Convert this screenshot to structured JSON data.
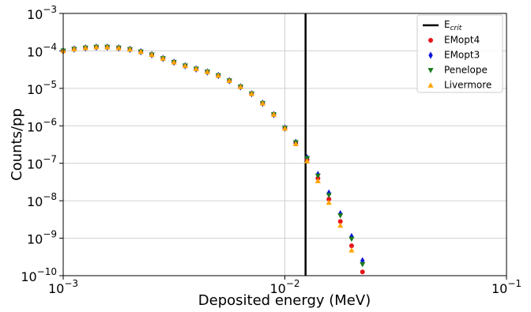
{
  "chart_data": {
    "type": "scatter",
    "x_label": "Deposited energy (MeV)",
    "y_label": "Counts/pp",
    "log_x": true,
    "log_y": true,
    "grid": true,
    "legend": "upper right",
    "xlim": [
      0.001,
      0.1
    ],
    "ylim": [
      1e-10,
      0.001
    ],
    "xticks": [
      {
        "value": 0.001,
        "label": "10−3"
      },
      {
        "value": 0.01,
        "label": "10−2"
      },
      {
        "value": 0.1,
        "label": "10−1"
      }
    ],
    "yticks": [
      {
        "value": 1e-10,
        "label": "10−10"
      },
      {
        "value": 1e-09,
        "label": "10−9"
      },
      {
        "value": 1e-08,
        "label": "10−8"
      },
      {
        "value": 1e-07,
        "label": "10−7"
      },
      {
        "value": 1e-06,
        "label": "10−6"
      },
      {
        "value": 1e-05,
        "label": "10−5"
      },
      {
        "value": 0.0001,
        "label": "10−4"
      },
      {
        "value": 0.001,
        "label": "10−3"
      }
    ],
    "vline": {
      "name": "Ecrit",
      "x": 0.0124,
      "color": "#000000"
    },
    "x": [
      0.001,
      0.00112,
      0.00126,
      0.00141,
      0.00158,
      0.00178,
      0.002,
      0.00224,
      0.00251,
      0.00282,
      0.00316,
      0.00355,
      0.00398,
      0.00447,
      0.00501,
      0.00562,
      0.00631,
      0.00708,
      0.00794,
      0.00891,
      0.01,
      0.0112,
      0.0126,
      0.0141,
      0.0158,
      0.0178,
      0.02,
      0.0224
    ],
    "series": [
      {
        "name": "EMopt4",
        "color": "#e8141c",
        "marker": "circle",
        "values": [
          0.0001,
          0.000112,
          0.00012,
          0.000126,
          0.000126,
          0.00012,
          0.00011,
          9.5e-05,
          7.9e-05,
          6.3e-05,
          5e-05,
          4e-05,
          3.3e-05,
          2.75e-05,
          2.2e-05,
          1.6e-05,
          1.1e-05,
          7.2e-06,
          4e-06,
          2e-06,
          8.7e-07,
          3.5e-07,
          1.26e-07,
          4e-08,
          1.1e-08,
          2.8e-09,
          6.3e-10,
          1.26e-10
        ]
      },
      {
        "name": "EMopt3",
        "color": "#0a14d8",
        "marker": "diamond",
        "values": [
          0.0001,
          0.000112,
          0.00012,
          0.000126,
          0.000126,
          0.00012,
          0.00011,
          9.5e-05,
          7.9e-05,
          6.3e-05,
          5e-05,
          4e-05,
          3.3e-05,
          2.75e-05,
          2.2e-05,
          1.6e-05,
          1.1e-05,
          7.2e-06,
          4e-06,
          2e-06,
          8.7e-07,
          3.6e-07,
          1.4e-07,
          5e-08,
          1.6e-08,
          4.5e-09,
          1.1e-09,
          2.5e-10
        ]
      },
      {
        "name": "Penelope",
        "color": "#1a7a1a",
        "marker": "triangle-down",
        "values": [
          0.0001,
          0.000112,
          0.00012,
          0.000126,
          0.000126,
          0.00012,
          0.00011,
          9.5e-05,
          7.9e-05,
          6.3e-05,
          5e-05,
          4e-05,
          3.3e-05,
          2.75e-05,
          2.2e-05,
          1.6e-05,
          1.1e-05,
          7.2e-06,
          4e-06,
          2e-06,
          8.7e-07,
          3.6e-07,
          1.35e-07,
          4.6e-08,
          1.4e-08,
          4e-09,
          9.5e-10,
          2e-10
        ]
      },
      {
        "name": "Livermore",
        "color": "#ffa500",
        "marker": "triangle-up",
        "values": [
          0.0001,
          0.000112,
          0.00012,
          0.000126,
          0.000126,
          0.00012,
          0.00011,
          9.5e-05,
          7.9e-05,
          6.3e-05,
          5e-05,
          4e-05,
          3.3e-05,
          2.75e-05,
          2.2e-05,
          1.6e-05,
          1.1e-05,
          7.2e-06,
          4e-06,
          2e-06,
          8.5e-07,
          3.3e-07,
          1.15e-07,
          3.4e-08,
          9e-09,
          2.2e-09,
          4.8e-10,
          null
        ]
      }
    ]
  }
}
